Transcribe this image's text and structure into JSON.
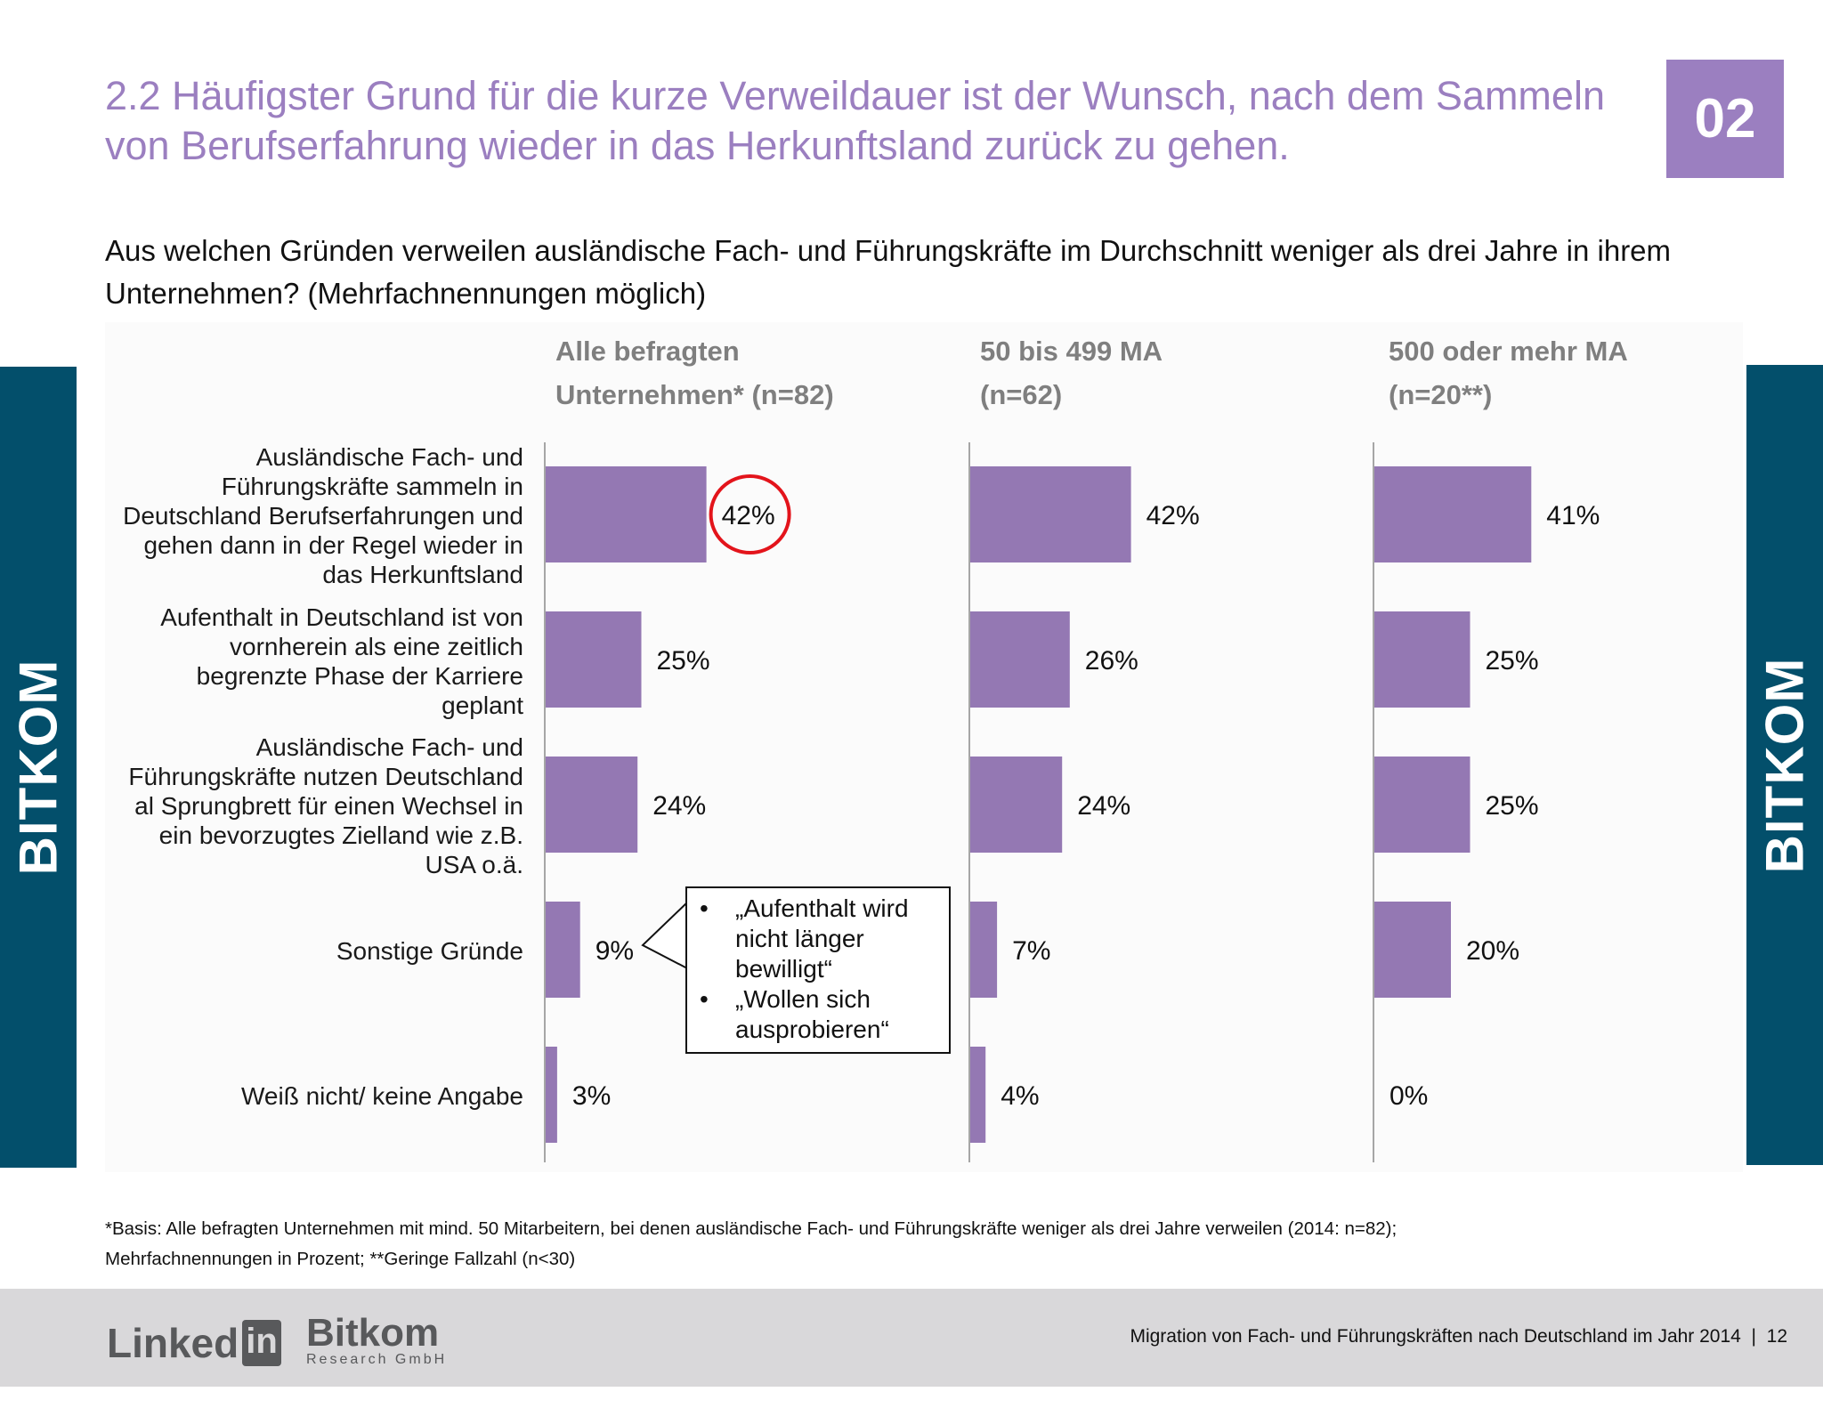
{
  "slide": {
    "title": "2.2 Häufigster Grund für die kurze Verweildauer ist der Wunsch, nach dem Sammeln von Berufserfahrung wieder in das Herkunftsland zurück zu gehen.",
    "section_number": "02",
    "question": "Aus welchen Gründen verweilen ausländische Fach- und Führungskräfte im Durchschnitt weniger als drei Jahre in ihrem Unternehmen? (Mehrfachnennungen möglich)",
    "side_label": "BITKOM",
    "footnote_line1": "*Basis: Alle befragten Unternehmen mit mind. 50 Mitarbeitern, bei denen ausländische Fach- und Führungskräfte weniger als drei Jahre verweilen (2014: n=82);",
    "footnote_line2": "Mehrfachnennungen in Prozent; **Geringe Fallzahl (n<30)"
  },
  "callout": {
    "items": [
      "„Aufenthalt wird nicht länger bewilligt“",
      "„Wollen sich ausprobieren“"
    ],
    "bullet": "•"
  },
  "footer": {
    "logo_linkedin_text": "Linked",
    "logo_linkedin_in": "in",
    "logo_bitkom_name": "Bitkom",
    "logo_bitkom_sub": "Research GmbH",
    "caption": "Migration von Fach- und Führungskräften nach Deutschland im Jahr 2014  |  12"
  },
  "colors": {
    "accent": "#9b7fc0",
    "bar": "#9478b3",
    "side_bar": "#034f6b",
    "highlight_circle": "#e3141b",
    "footer_bg": "#d9d8da"
  },
  "chart_data": {
    "type": "bar",
    "orientation": "horizontal",
    "unit": "%",
    "categories": [
      "Ausländische Fach- und Führungskräfte sammeln in Deutschland Berufserfahrungen und gehen dann in der Regel wieder in das Herkunftsland",
      "Aufenthalt in Deutschland ist von vornherein als eine zeitlich begrenzte Phase der Karriere geplant",
      "Ausländische Fach- und Führungskräfte nutzen Deutschland al Sprungbrett für einen Wechsel in ein bevorzugtes Zielland wie z.B. USA o.ä.",
      "Sonstige Gründe",
      "Weiß nicht/ keine Angabe"
    ],
    "series": [
      {
        "name_line1": "Alle befragten",
        "name_line2": "Unternehmen* (n=82)",
        "values": [
          42,
          25,
          24,
          9,
          3
        ],
        "labels": [
          "42%",
          "25%",
          "24%",
          "9%",
          "3%"
        ]
      },
      {
        "name_line1": "50 bis 499 MA",
        "name_line2": "(n=62)",
        "values": [
          42,
          26,
          24,
          7,
          4
        ],
        "labels": [
          "42%",
          "26%",
          "24%",
          "7%",
          "4%"
        ]
      },
      {
        "name_line1": "500 oder mehr MA",
        "name_line2": "(n=20**)",
        "values": [
          41,
          25,
          25,
          20,
          0
        ],
        "labels": [
          "41%",
          "25%",
          "25%",
          "20%",
          "0%"
        ]
      }
    ],
    "highlight": {
      "series": 0,
      "category": 0
    }
  }
}
